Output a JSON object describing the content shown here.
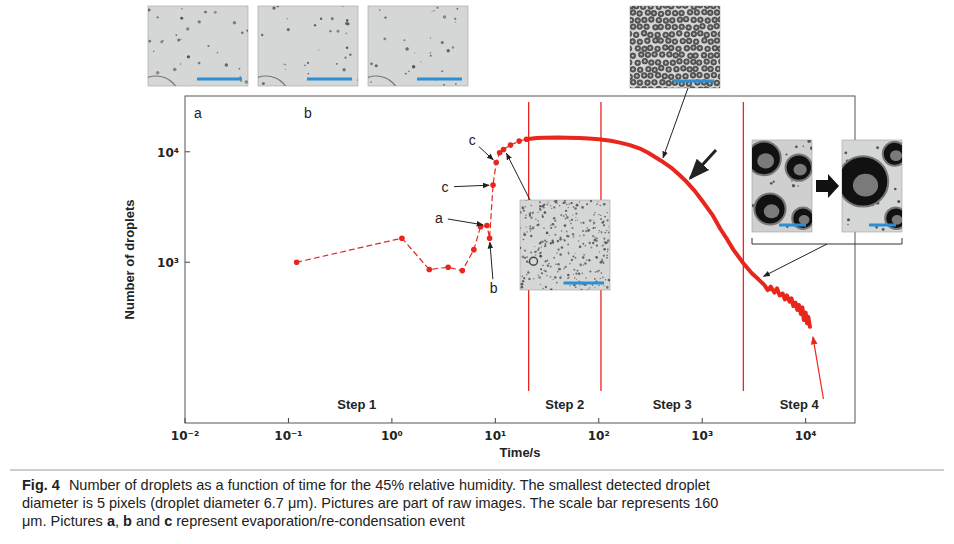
{
  "chart_data": {
    "type": "line",
    "x_label": "Time/s",
    "y_label": "Number of droplets",
    "log": true,
    "grid": false,
    "xlim": [
      0.01,
      30000
    ],
    "ylim": [
      35,
      32000
    ],
    "xticks": [
      {
        "value": 0.01,
        "label": "10⁻²"
      },
      {
        "value": 0.1,
        "label": "10⁻¹"
      },
      {
        "value": 1,
        "label": "10⁰"
      },
      {
        "value": 10,
        "label": "10¹"
      },
      {
        "value": 100,
        "label": "10²"
      },
      {
        "value": 1000,
        "label": "10³"
      },
      {
        "value": 10000,
        "label": "10⁴"
      }
    ],
    "yticks": [
      {
        "value": 1000,
        "label": "10³"
      },
      {
        "value": 10000,
        "label": "10⁴"
      }
    ],
    "series": [
      {
        "color": "#e8261c",
        "line_style": "dashed",
        "marker": "circle",
        "x": [
          0.12,
          1.25,
          2.3,
          3.5,
          4.8,
          6.2,
          7.2,
          8.3,
          8.8,
          9.5,
          10.2,
          11,
          12,
          14,
          17,
          20
        ],
        "values": [
          1000,
          1650,
          860,
          900,
          840,
          1300,
          2100,
          2150,
          1650,
          5000,
          8000,
          9800,
          10500,
          11500,
          12500,
          13000
        ]
      },
      {
        "color": "#e8261c",
        "line_style": "solid",
        "marker": "none",
        "x": [
          20,
          25,
          30,
          40,
          50,
          65,
          80,
          100,
          130,
          160,
          200,
          250,
          300,
          400,
          500,
          600,
          700,
          850,
          1000,
          1250,
          1500,
          1750,
          2000,
          2500,
          3000,
          3500,
          4000,
          4300,
          4600,
          5000,
          5300,
          5600,
          6000,
          6300,
          6600,
          7000,
          7300,
          7600,
          8000,
          8300,
          8600,
          9000,
          9300,
          9600,
          10000,
          10300,
          10600,
          11000
        ],
        "values": [
          13000,
          13300,
          13400,
          13500,
          13400,
          13300,
          13200,
          13000,
          12600,
          12100,
          11500,
          10700,
          9800,
          8300,
          7200,
          6200,
          5400,
          4400,
          3600,
          2700,
          2000,
          1600,
          1300,
          980,
          800,
          700,
          620,
          560,
          600,
          530,
          580,
          500,
          520,
          460,
          500,
          440,
          470,
          400,
          430,
          370,
          410,
          340,
          390,
          300,
          350,
          280,
          320,
          260
        ]
      }
    ],
    "step_boundaries": [
      21,
      105,
      2500
    ],
    "step_labels": [
      "Step 1",
      "Step 2",
      "Step 3",
      "Step 4"
    ],
    "annotations": [
      {
        "text": "c",
        "x": 10.2,
        "y": 8000
      },
      {
        "text": "c",
        "x": 9.5,
        "y": 5000
      },
      {
        "text": "a",
        "x": 8.3,
        "y": 2150
      },
      {
        "text": "b",
        "x": 8.8,
        "y": 1650
      }
    ],
    "photo_labels": [
      "a",
      "b"
    ]
  },
  "caption": {
    "label": "Fig. 4",
    "lines": [
      [
        {
          "text": "Number of droplets as a function of time for the 45% relative humidity. The smallest detected droplet"
        }
      ],
      [
        {
          "text": "diameter is 5 pixels (droplet diameter 6.7 μm). Pictures are part of raw images. The scale bar represents 160"
        }
      ],
      [
        {
          "text": "μm. Pictures "
        },
        {
          "text": "a",
          "bold": true
        },
        {
          "text": ", "
        },
        {
          "text": "b",
          "bold": true
        },
        {
          "text": " and "
        },
        {
          "text": "c",
          "bold": true
        },
        {
          "text": " represent evaporation/re-condensation event"
        }
      ]
    ]
  }
}
